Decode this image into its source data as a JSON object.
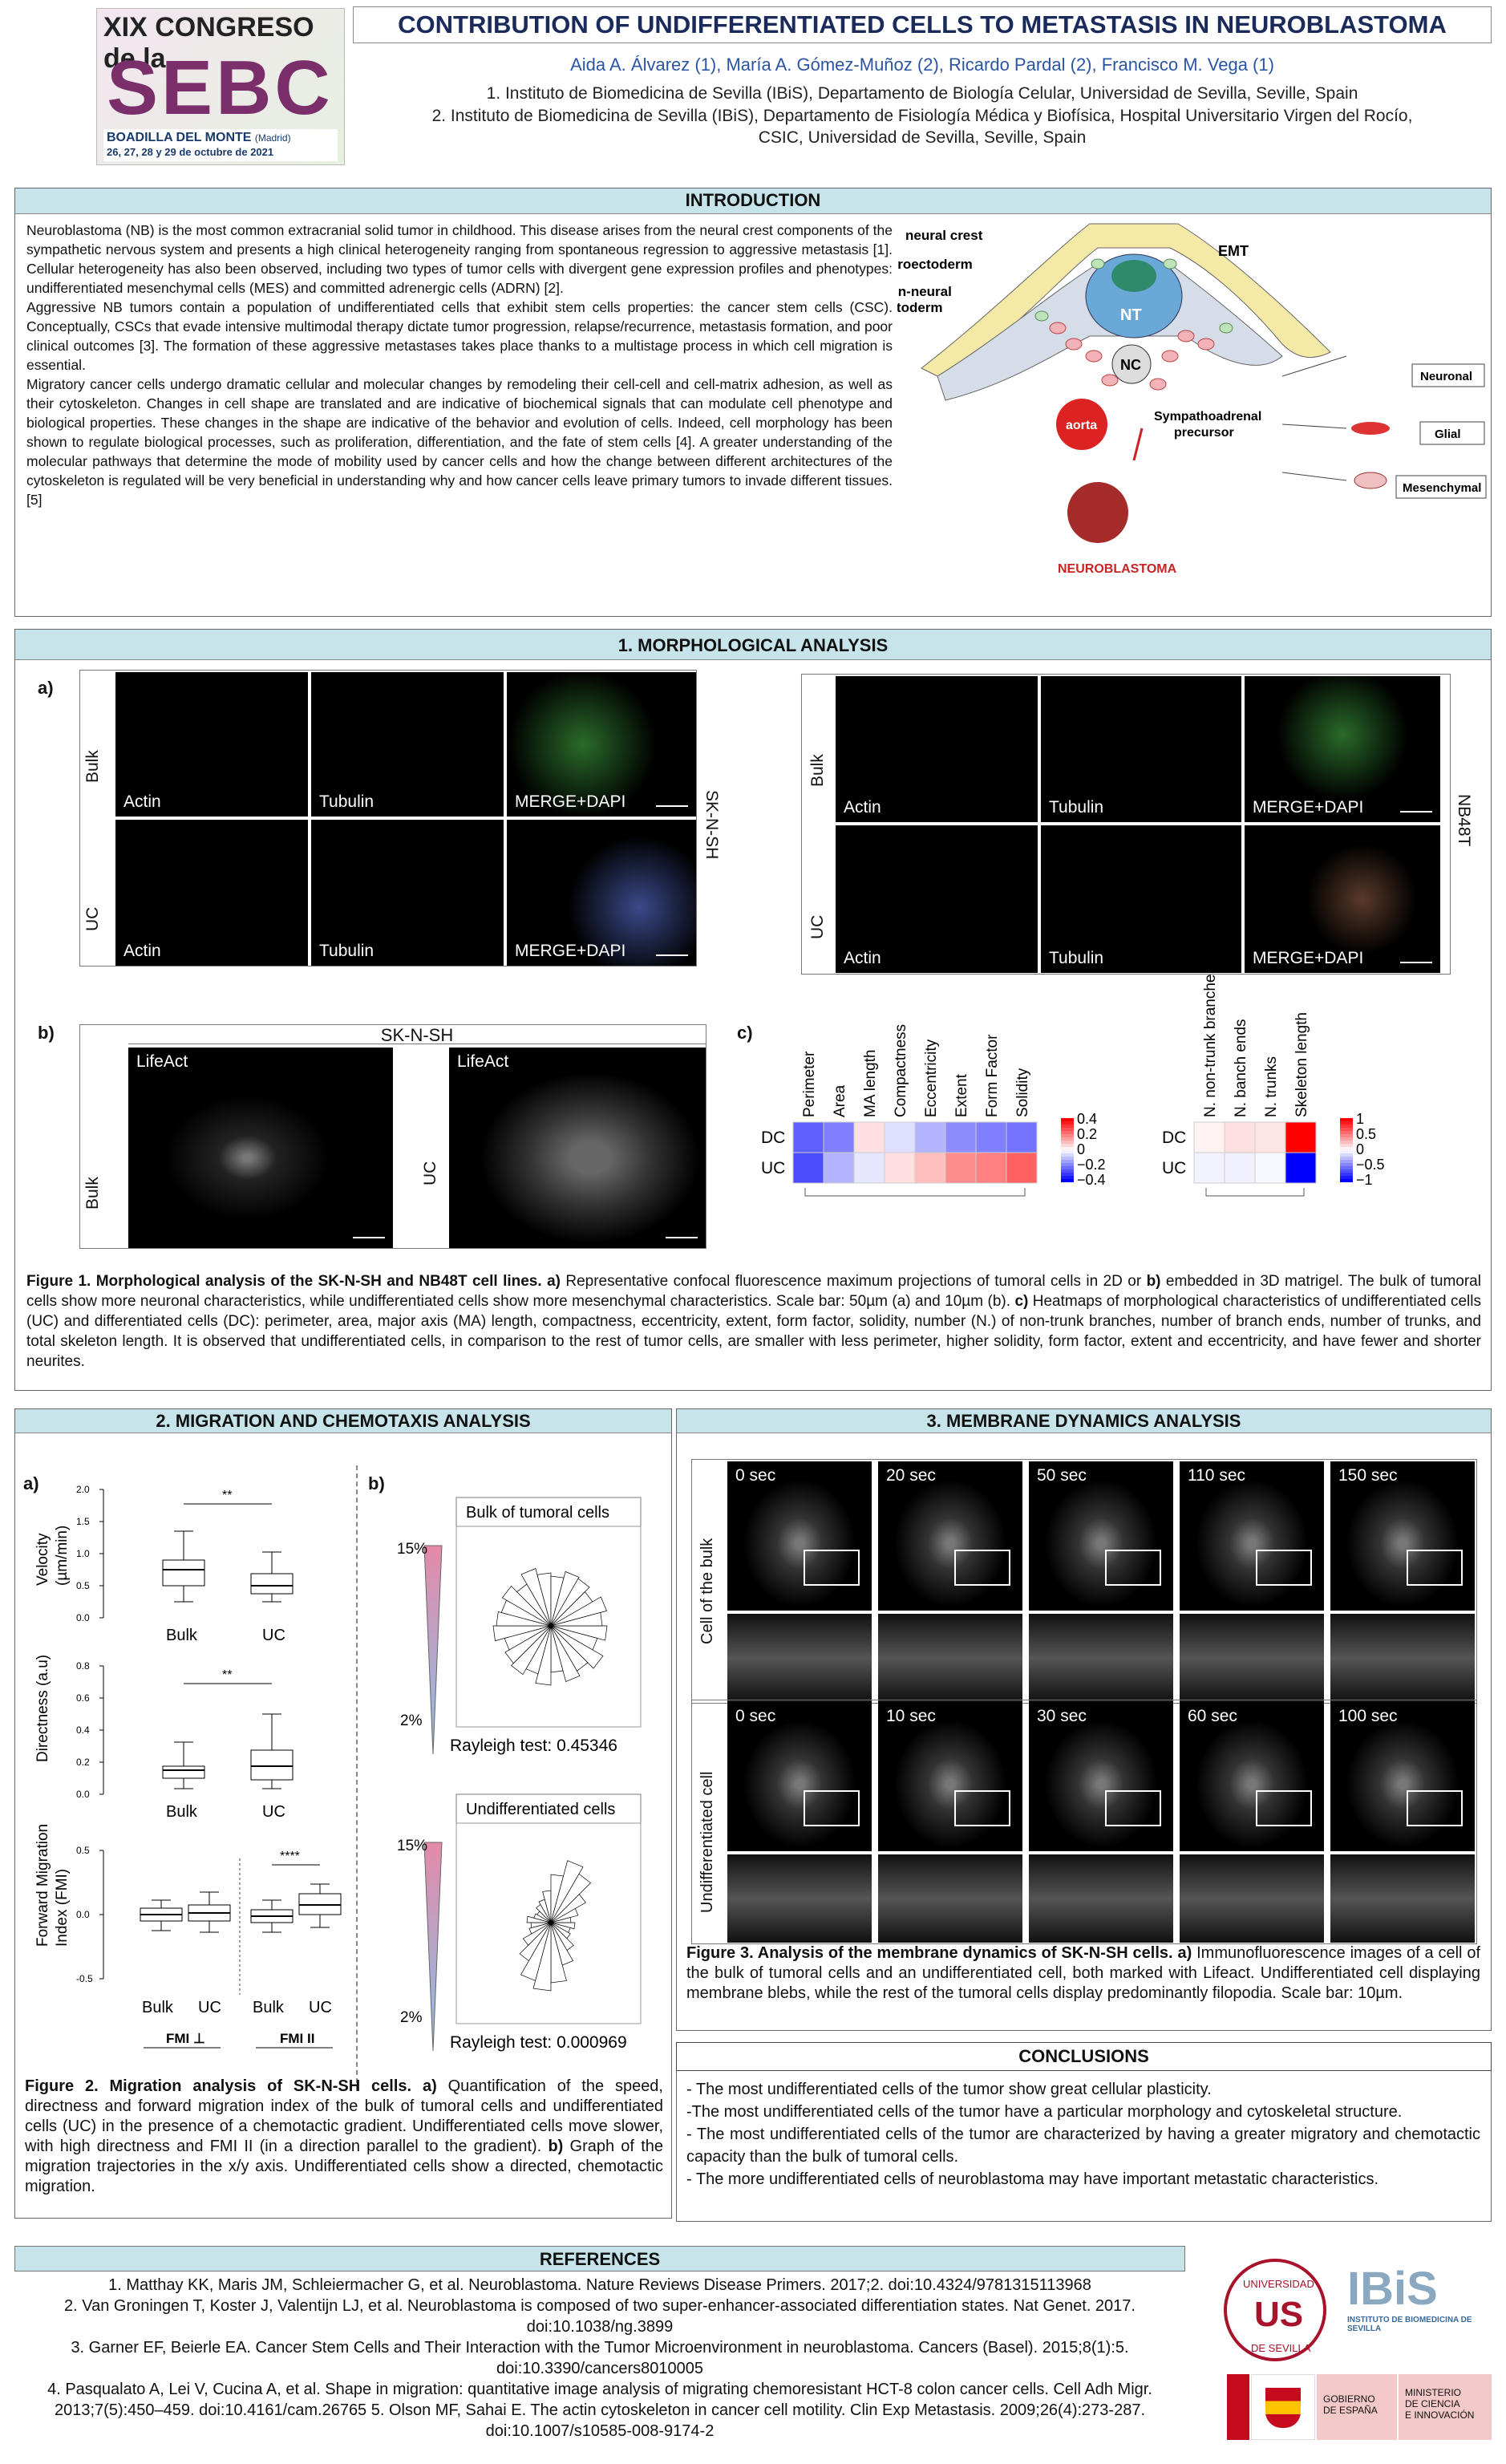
{
  "header": {
    "logo_line1": "XIX CONGRESO de la",
    "logo_line2": "SEBC",
    "logo_place": "BOADILLA DEL MONTE",
    "logo_region": "(Madrid)",
    "logo_dates": "26, 27, 28 y 29 de octubre de 2021",
    "title": "CONTRIBUTION OF UNDIFFERENTIATED CELLS TO METASTASIS IN NEUROBLASTOMA",
    "authors": "Aida A. Álvarez (1), María A. Gómez-Muñoz (2), Ricardo Pardal (2), Francisco M. Vega (1)",
    "affiliation1": "1.  Instituto de Biomedicina de Sevilla (IBiS), Departamento de Biología Celular, Universidad de Sevilla, Seville, Spain",
    "affiliation2a": "2.  Instituto de Biomedicina de Sevilla (IBiS), Departamento de Fisiología Médica y Biofísica, Hospital Universitario Virgen del Rocío,",
    "affiliation2b": "CSIC, Universidad de Sevilla, Seville, Spain"
  },
  "intro": {
    "heading": "INTRODUCTION",
    "p1": "Neuroblastoma (NB) is the most common extracranial solid tumor in childhood. This disease arises from the neural crest components of the sympathetic nervous system and presents a high clinical heterogeneity ranging from spontaneous regression to aggressive metastasis [1]. Cellular heterogeneity has also been observed, including two types of tumor cells with divergent gene expression profiles and phenotypes: undifferentiated mesenchymal cells (MES) and committed adrenergic cells (ADRN) [2].",
    "p2": "Aggressive NB tumors contain a population of undifferentiated cells that exhibit stem cells properties: the cancer stem cells (CSC). Conceptually, CSCs that evade intensive multimodal therapy dictate tumor progression, relapse/recurrence, metastasis formation, and poor clinical outcomes [3]. The formation of these aggressive metastases takes place thanks to a multistage process in which cell migration is essential.",
    "p3": "Migratory cancer cells undergo dramatic cellular and molecular changes by remodeling their cell-cell and cell-matrix adhesion, as well as their cytoskeleton. Changes in cell shape are translated and are indicative of biochemical signals that can modulate cell phenotype and biological properties. These changes in the shape are indicative of the behavior and evolution of cells. Indeed, cell morphology has been shown to regulate biological processes, such as proliferation, differentiation, and the fate of stem cells [4]. A greater understanding of the molecular pathways that determine the mode of mobility used by cancer cells and how the change between different architectures of the cytoskeleton is regulated will be very beneficial in understanding why and how cancer cells leave primary tumors to invade different tissues. [5]",
    "diagram": {
      "neural_crest": "neural crest",
      "neuroectoderm": "neuroectoderm",
      "non_neural1": "non-neural",
      "non_neural2": "ectoderm",
      "emt": "EMT",
      "nt": "NT",
      "nc": "NC",
      "aorta": "aorta",
      "sympathoadrenal1": "Sympathoadrenal",
      "sympathoadrenal2": "precursor",
      "neuroblastoma": "NEUROBLASTOMA",
      "neuronal": "Neuronal",
      "glial": "Glial",
      "mesenchymal": "Mesenchymal"
    }
  },
  "morph": {
    "heading": "1. MORPHOLOGICAL ANALYSIS",
    "a": "a)",
    "b": "b)",
    "c": "c)",
    "bulk": "Bulk",
    "uc": "UC",
    "actin": "Actin",
    "tubulin": "Tubulin",
    "merge": "MERGE+DAPI",
    "sknsh": "SK-N-SH",
    "nb48t": "NB48T",
    "lifeact": "LifeAct",
    "heat1_cols": [
      "Perimeter",
      "Area",
      "MA length",
      "Compactness",
      "Eccentricity",
      "Extent",
      "Form Factor",
      "Solidity"
    ],
    "heat2_cols": [
      "N. non-trunk branches",
      "N. banch ends",
      "N. trunks",
      "Skeleton length"
    ],
    "rows": [
      "DC",
      "UC"
    ],
    "scale1": [
      "0.4",
      "0.2",
      "0",
      "−0.2",
      "−0.4"
    ],
    "scale2": [
      "1",
      "0.5",
      "0",
      "−0.5",
      "−1"
    ],
    "heat1_dc": [
      -0.25,
      -0.2,
      0.05,
      -0.05,
      -0.12,
      -0.18,
      -0.2,
      -0.22
    ],
    "heat1_uc": [
      -0.28,
      -0.12,
      -0.04,
      0.05,
      0.1,
      0.18,
      0.2,
      0.25
    ],
    "heat2_dc": [
      0.05,
      0.12,
      0.1,
      1.0
    ],
    "heat2_uc": [
      -0.05,
      -0.06,
      -0.03,
      -1.0
    ],
    "caption_bold": "Figure 1. Morphological analysis of the SK-N-SH and NB48T cell lines.",
    "caption_a": " a)",
    "caption_rest1": " Representative confocal fluorescence maximum projections of tumoral cells in 2D or ",
    "caption_b": "b)",
    "caption_rest2": " embedded in 3D matrigel. The bulk of tumoral cells show more neuronal characteristics, while undifferentiated cells show more mesenchymal characteristics. Scale bar: 50µm (a) and 10µm (b).  ",
    "caption_c": "c)",
    "caption_rest3": " Heatmaps of morphological characteristics of undifferentiated cells (UC) and differentiated cells (DC): perimeter, area, major axis (MA) length, compactness, eccentricity, extent, form factor, solidity, number (N.) of non-trunk branches, number of branch ends, number of trunks, and total skeleton length. It is observed that undifferentiated cells, in comparison to the rest of tumor cells, are smaller with less perimeter, higher solidity, form factor, extent and eccentricity, and have fewer and shorter neurites."
  },
  "migration": {
    "heading": "2. MIGRATION AND CHEMOTAXIS ANALYSIS",
    "a": "a)",
    "b": "b)",
    "velocity_label1": "Velocity",
    "velocity_label2": "(µm/min)",
    "velocity_ticks": [
      "2.0",
      "1.5",
      "1.0",
      "0.5",
      "0.0"
    ],
    "directness_label": "Directness (a.u)",
    "directness_ticks": [
      "0.8",
      "0.6",
      "0.4",
      "0.2",
      "0.0"
    ],
    "fmi_label1": "Forward Migration",
    "fmi_label2": "Index (FMI)",
    "fmi_ticks": [
      "0.5",
      "0.0",
      "-0.5"
    ],
    "sig2": "**",
    "sig4": "****",
    "bulk": "Bulk",
    "uc": "UC",
    "fmi1": "FMI ⊥",
    "fmi2": "FMI II",
    "pct_hi": "15%",
    "pct_lo": "2%",
    "rose1_title": "Bulk of tumoral cells",
    "rose1_test": "Rayleigh test: 0.45346",
    "rose2_title": "Undifferentiated cells",
    "rose2_test": "Rayleigh test: 0.000969",
    "caption_bold": "Figure 2. Migration analysis of SK-N-SH cells.",
    "caption_a": " a)",
    "caption_rest1": " Quantification of the speed, directness and forward migration index of the bulk of tumoral cells and undifferentiated cells (UC) in the presence of a chemotactic gradient. Undifferentiated cells move slower, with high directness and FMI II (in a direction parallel to the gradient). ",
    "caption_b": "b)",
    "caption_rest2": " Graph of the migration trajectories in the x/y axis. Undifferentiated cells show a directed, chemotactic migration."
  },
  "membrane": {
    "heading": "3. MEMBRANE DYNAMICS ANALYSIS",
    "row1_label": "Cell of the bulk",
    "row2_label": "Undifferentiated cell",
    "row1_times": [
      "0 sec",
      "20 sec",
      "50 sec",
      "110 sec",
      "150 sec"
    ],
    "row2_times": [
      "0 sec",
      "10 sec",
      "30 sec",
      "60 sec",
      "100 sec"
    ],
    "caption_bold": "Figure 3. Analysis of the membrane dynamics of SK-N-SH cells.",
    "caption_a": " a)",
    "caption_rest": " Immunofluorescence images of a cell of the bulk of tumoral cells and an undifferentiated cell, both marked with Lifeact. Undifferentiated cell displaying membrane blebs, while the rest of the tumoral cells display predominantly filopodia. Scale bar: 10µm."
  },
  "conclusions": {
    "heading": "CONCLUSIONS",
    "items": [
      "- The most undifferentiated cells of the tumor show great cellular plasticity.",
      "-The most undifferentiated cells of the tumor have a particular morphology and cytoskeletal structure.",
      "- The most undifferentiated cells of the tumor are characterized by having a greater migratory and chemotactic capacity than the bulk of tumoral cells.",
      "- The more undifferentiated cells of neuroblastoma may have important metastatic characteristics."
    ]
  },
  "references": {
    "heading": "REFERENCES",
    "items": [
      "1. Matthay KK, Maris JM, Schleiermacher G, et al. Neuroblastoma. Nature Reviews Disease Primers. 2017;2. doi:10.4324/9781315113968",
      "2. Van Groningen T, Koster J, Valentijn LJ, et al. Neuroblastoma is composed of two super-enhancer-associated differentiation states. Nat Genet. 2017. doi:10.1038/ng.3899",
      "3. Garner EF, Beierle EA. Cancer Stem Cells and Their Interaction with the Tumor Microenvironment in neuroblastoma. Cancers (Basel). 2015;8(1):5. doi:10.3390/cancers8010005",
      "4. Pasqualato A, Lei V, Cucina A, et al. Shape in migration: quantitative image analysis of migrating chemoresistant HCT-8 colon cancer cells. Cell Adh Migr. 2013;7(5):450–459. doi:10.4161/cam.26765 5. Olson MF, Sahai E. The actin cytoskeleton in cancer cell motility. Clin Exp Metastasis. 2009;26(4):273-287. doi:10.1007/s10585-008-9174-2"
    ]
  },
  "logos": {
    "us1": "UNIVERSIDAD",
    "us2": "DE SEVILLA",
    "ibis": "IBiS",
    "ibis_sub": "INSTITUTO DE BIOMEDICINA DE SEVILLA",
    "gob1": "GOBIERNO",
    "gob2": "DE ESPAÑA",
    "min1": "MINISTERIO",
    "min2": "DE CIENCIA",
    "min3": "E INNOVACIÓN"
  }
}
